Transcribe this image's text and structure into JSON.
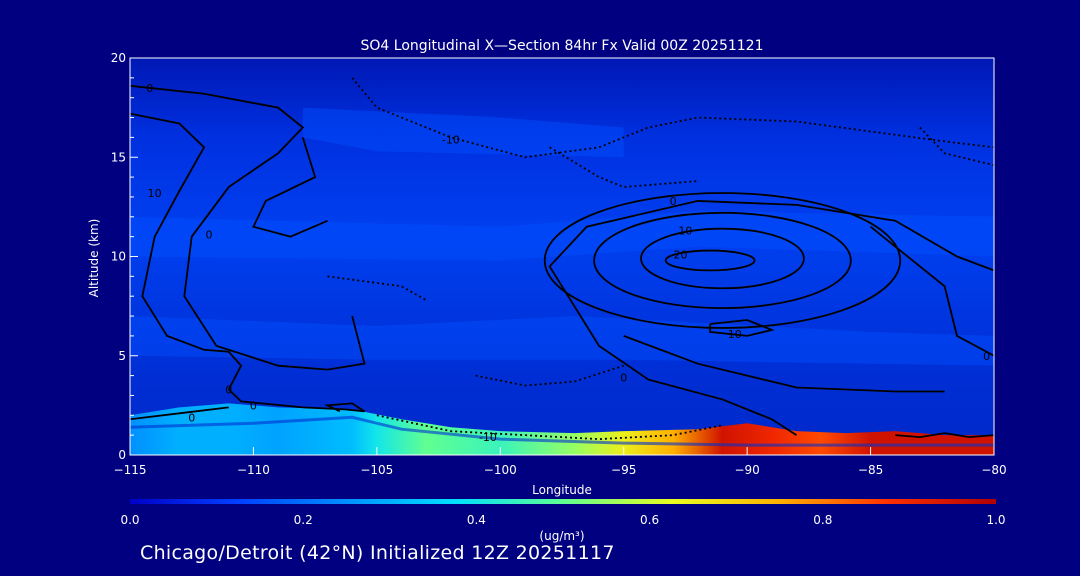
{
  "chart_data": {
    "type": "heatmap",
    "title": "SO4 Longitudinal X—Section 84hr  Fx Valid 00Z 20251121",
    "xlabel": "Longitude",
    "ylabel": "Altitude (km)",
    "xlim": [
      -115,
      -80
    ],
    "ylim": [
      0,
      20
    ],
    "x_ticks": [
      -115,
      -110,
      -105,
      -100,
      -95,
      -90,
      -85,
      -80
    ],
    "y_ticks": [
      0,
      5,
      10,
      15,
      20
    ],
    "grid": false,
    "colorscale": {
      "label": "(ug/m³)",
      "min": 0.0,
      "max": 1.0,
      "ticks": [
        "0.0",
        "0.2",
        "0.4",
        "0.6",
        "0.8",
        "1.0"
      ],
      "colors": [
        "#0000c8",
        "#0040ff",
        "#0090ff",
        "#00e0ff",
        "#60ff90",
        "#e8ff20",
        "#ffb000",
        "#ff3000",
        "#b00000"
      ]
    },
    "surface_concentration": {
      "x": [
        -115,
        -113,
        -111,
        -109,
        -106,
        -105,
        -103,
        -100,
        -97,
        -95,
        -93,
        -91,
        -89,
        -87,
        -85,
        -83,
        -81,
        -80
      ],
      "values": [
        0.25,
        0.3,
        0.3,
        0.28,
        0.32,
        0.4,
        0.5,
        0.45,
        0.55,
        0.65,
        0.75,
        0.95,
        0.9,
        0.85,
        0.95,
        0.95,
        0.95,
        0.95
      ]
    },
    "contour_labels": [
      {
        "text": "0",
        "x": -114.2,
        "y": 18.5
      },
      {
        "text": "10",
        "x": -114,
        "y": 13.2
      },
      {
        "text": "0",
        "x": -111.8,
        "y": 11.1
      },
      {
        "text": "-10",
        "x": -102,
        "y": 15.9
      },
      {
        "text": "0",
        "x": -93,
        "y": 12.8
      },
      {
        "text": "10",
        "x": -92.5,
        "y": 11.3
      },
      {
        "text": "20",
        "x": -92.7,
        "y": 10.1
      },
      {
        "text": "10",
        "x": -90.5,
        "y": 6.1
      },
      {
        "text": "0",
        "x": -95,
        "y": 3.9
      },
      {
        "text": "0",
        "x": -110,
        "y": 2.5
      },
      {
        "text": "0",
        "x": -112.5,
        "y": 1.9
      },
      {
        "text": "-10",
        "x": -100.5,
        "y": 0.9
      },
      {
        "text": "0",
        "x": -111,
        "y": 3.3
      },
      {
        "text": "0",
        "x": -80.3,
        "y": 5
      }
    ]
  },
  "footer": {
    "caption": "Chicago/Detroit (42°N) Initialized 12Z 20251117"
  }
}
